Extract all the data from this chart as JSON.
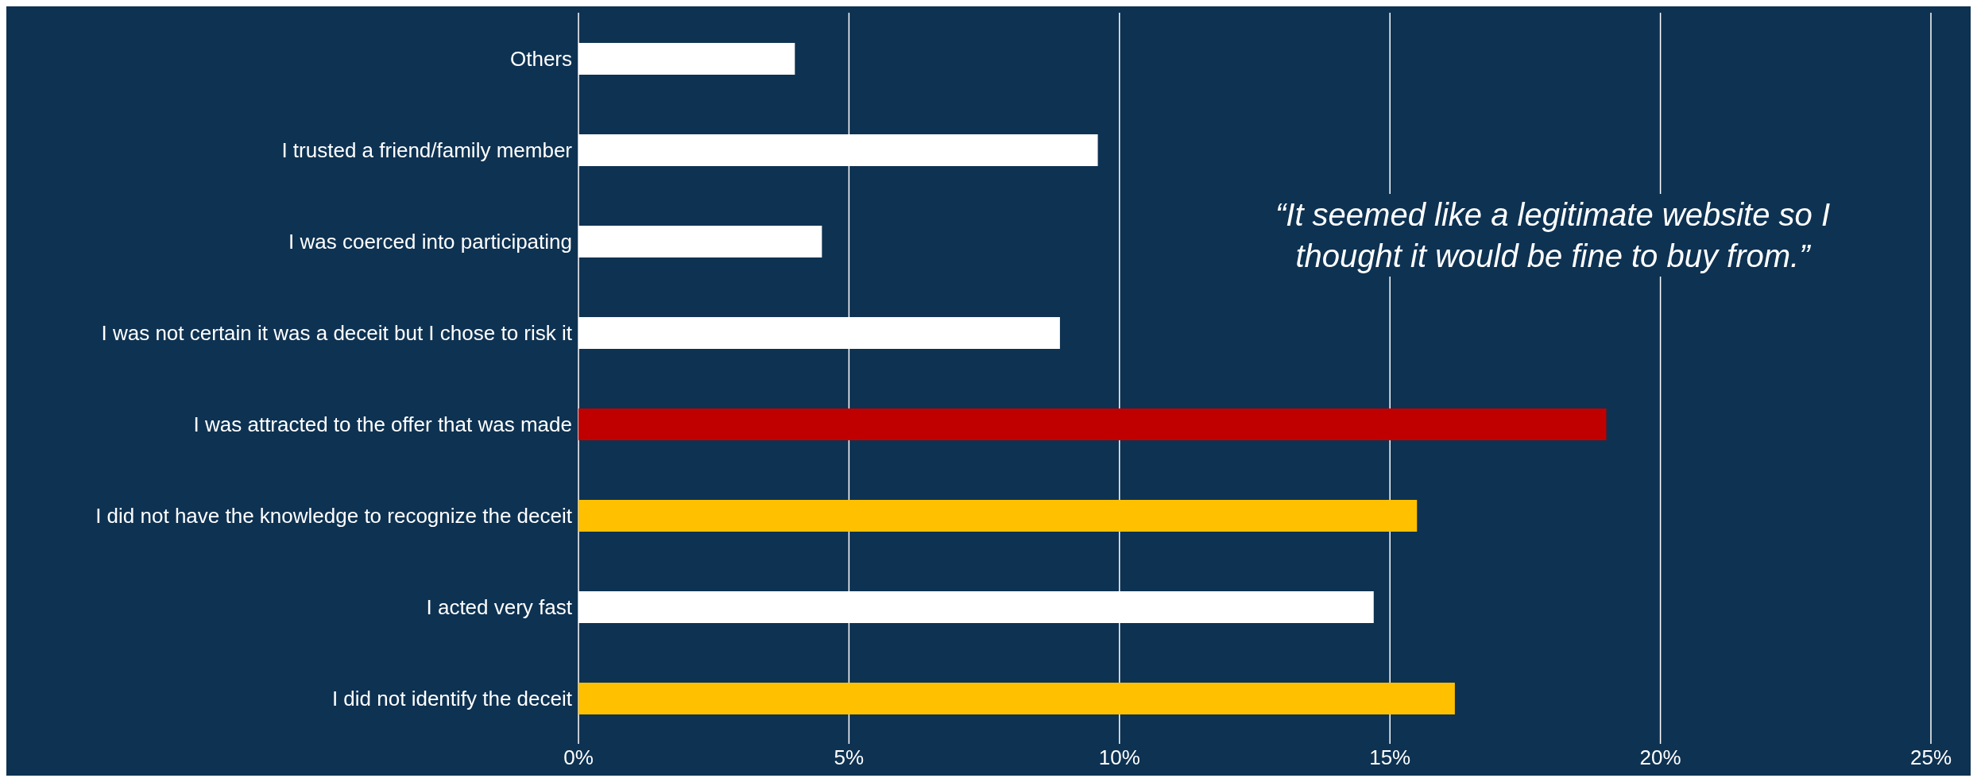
{
  "chart_data": {
    "type": "bar",
    "orientation": "horizontal",
    "categories": [
      "Others",
      "I trusted a friend/family member",
      "I was coerced into participating",
      "I was not certain it was a deceit but I chose to risk it",
      "I was attracted to the offer that was made",
      "I did not have the knowledge to recognize the deceit",
      "I acted very fast",
      "I did not identify the deceit"
    ],
    "values": [
      4.0,
      9.6,
      4.5,
      8.9,
      19.0,
      15.5,
      14.7,
      16.2
    ],
    "colors": [
      "#ffffff",
      "#ffffff",
      "#ffffff",
      "#ffffff",
      "#c00000",
      "#ffc000",
      "#ffffff",
      "#ffc000"
    ],
    "xlim": [
      0,
      25
    ],
    "xticks": [
      {
        "value": 0,
        "label": "0%"
      },
      {
        "value": 5,
        "label": "5%"
      },
      {
        "value": 10,
        "label": "10%"
      },
      {
        "value": 15,
        "label": "15%"
      },
      {
        "value": 20,
        "label": "20%"
      },
      {
        "value": 25,
        "label": "25%"
      }
    ],
    "grid": "x",
    "annotations": [
      "“It seemed like a legitimate website so I thought it would be fine to buy from.”"
    ]
  }
}
